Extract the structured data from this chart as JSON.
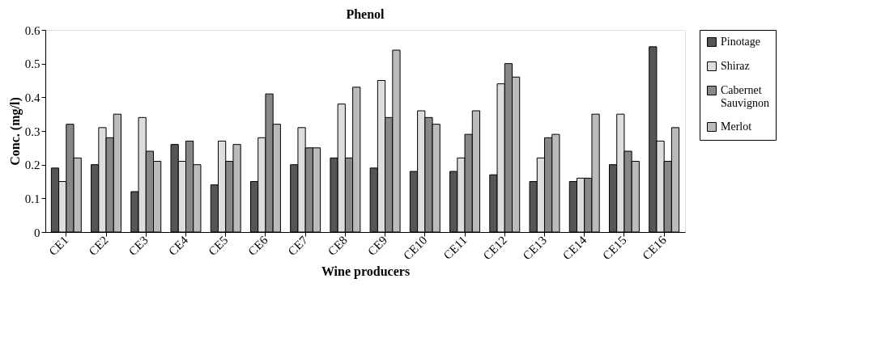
{
  "chart_data": {
    "type": "bar",
    "title": "Phenol",
    "xlabel": "Wine producers",
    "ylabel": "Conc. (mg/l)",
    "categories": [
      "CE1",
      "CE2",
      "CE3",
      "CE4",
      "CE5",
      "CE6",
      "CE7",
      "CE8",
      "CE9",
      "CE10",
      "CE11",
      "CE12",
      "CE13",
      "CE14",
      "CE15",
      "CE16"
    ],
    "series": [
      {
        "name": "Pinotage",
        "color": "#555555",
        "values": [
          0.19,
          0.2,
          0.12,
          0.26,
          0.14,
          0.15,
          0.2,
          0.22,
          0.19,
          0.18,
          0.18,
          0.17,
          0.15,
          0.15,
          0.2,
          0.55
        ]
      },
      {
        "name": "Shiraz",
        "color": "#dddddd",
        "values": [
          0.15,
          0.31,
          0.34,
          0.21,
          0.27,
          0.28,
          0.31,
          0.38,
          0.45,
          0.36,
          0.22,
          0.44,
          0.22,
          0.16,
          0.35,
          0.27
        ]
      },
      {
        "name": "Cabernet Sauvignon",
        "color": "#888888",
        "values": [
          0.32,
          0.28,
          0.24,
          0.27,
          0.21,
          0.41,
          0.25,
          0.22,
          0.34,
          0.34,
          0.29,
          0.5,
          0.28,
          0.16,
          0.24,
          0.21
        ]
      },
      {
        "name": "Merlot",
        "color": "#bbbbbb",
        "values": [
          0.22,
          0.35,
          0.21,
          0.2,
          0.26,
          0.32,
          0.25,
          0.43,
          0.54,
          0.32,
          0.36,
          0.46,
          0.29,
          0.35,
          0.21,
          0.31
        ]
      }
    ],
    "ylim": [
      0,
      0.6
    ],
    "yticks": [
      {
        "value": 0,
        "label": "0"
      },
      0.1,
      0.2,
      0.3,
      0.4,
      0.5,
      0.6
    ],
    "grid": false,
    "legend": "right"
  }
}
